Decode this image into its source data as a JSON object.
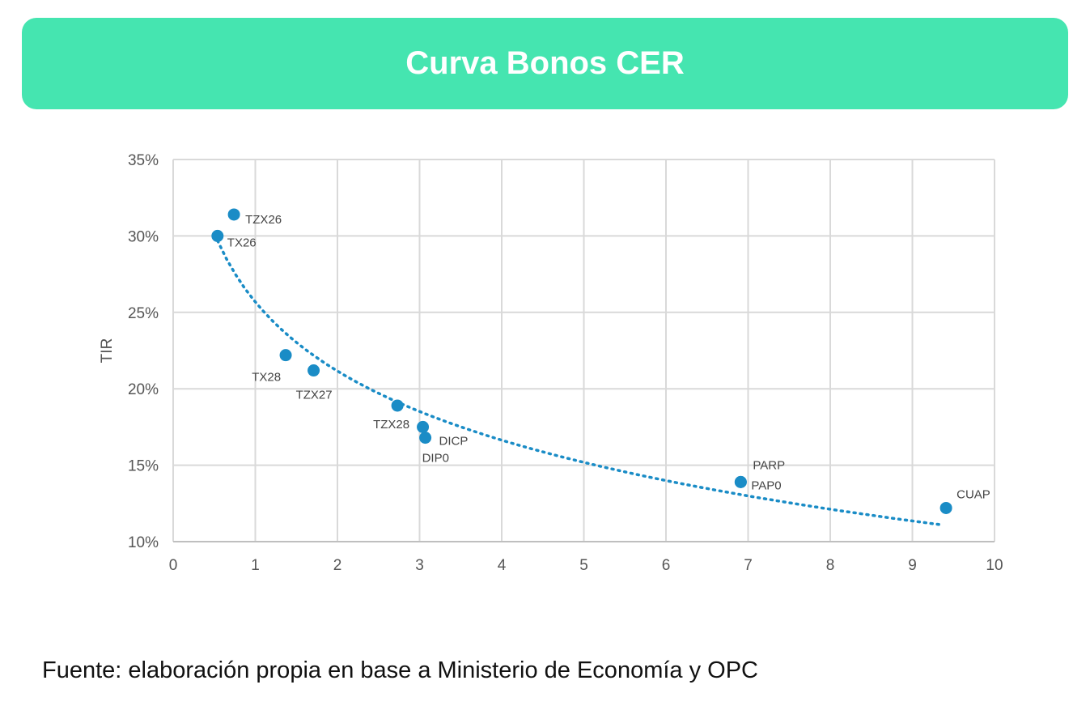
{
  "header": {
    "title": "Curva Bonos CER"
  },
  "footer": {
    "source": "Fuente: elaboración propia en base a Ministerio de Economía y OPC"
  },
  "chart_data": {
    "type": "scatter",
    "title": "Curva Bonos CER",
    "xlabel": "",
    "ylabel": "TIR",
    "xlim": [
      0,
      10
    ],
    "ylim": [
      10,
      35
    ],
    "xticks": [
      0,
      1,
      2,
      3,
      4,
      5,
      6,
      7,
      8,
      9,
      10
    ],
    "yticks": [
      10,
      15,
      20,
      25,
      30,
      35
    ],
    "ytick_labels": [
      "10%",
      "15%",
      "20%",
      "25%",
      "30%",
      "35%"
    ],
    "grid": true,
    "point_color": "#1a8cc6",
    "points": [
      {
        "label": "TZX26",
        "x": 0.74,
        "y": 31.4
      },
      {
        "label": "TX26",
        "x": 0.54,
        "y": 30.0
      },
      {
        "label": "TX28",
        "x": 1.37,
        "y": 22.2
      },
      {
        "label": "TZX27",
        "x": 1.71,
        "y": 21.2
      },
      {
        "label": "TZX28",
        "x": 2.73,
        "y": 18.9
      },
      {
        "label": "DICP",
        "x": 3.04,
        "y": 17.5
      },
      {
        "label": "DIP0",
        "x": 3.07,
        "y": 16.8
      },
      {
        "label": "PARP",
        "x": 6.91,
        "y": 13.9
      },
      {
        "label": "PAP0",
        "x": 6.91,
        "y": 13.9
      },
      {
        "label": "CUAP",
        "x": 9.41,
        "y": 12.2
      }
    ],
    "trendline": {
      "type": "logarithmic",
      "a": 25.68,
      "b": -6.52,
      "x_range": [
        0.54,
        9.35
      ]
    }
  }
}
